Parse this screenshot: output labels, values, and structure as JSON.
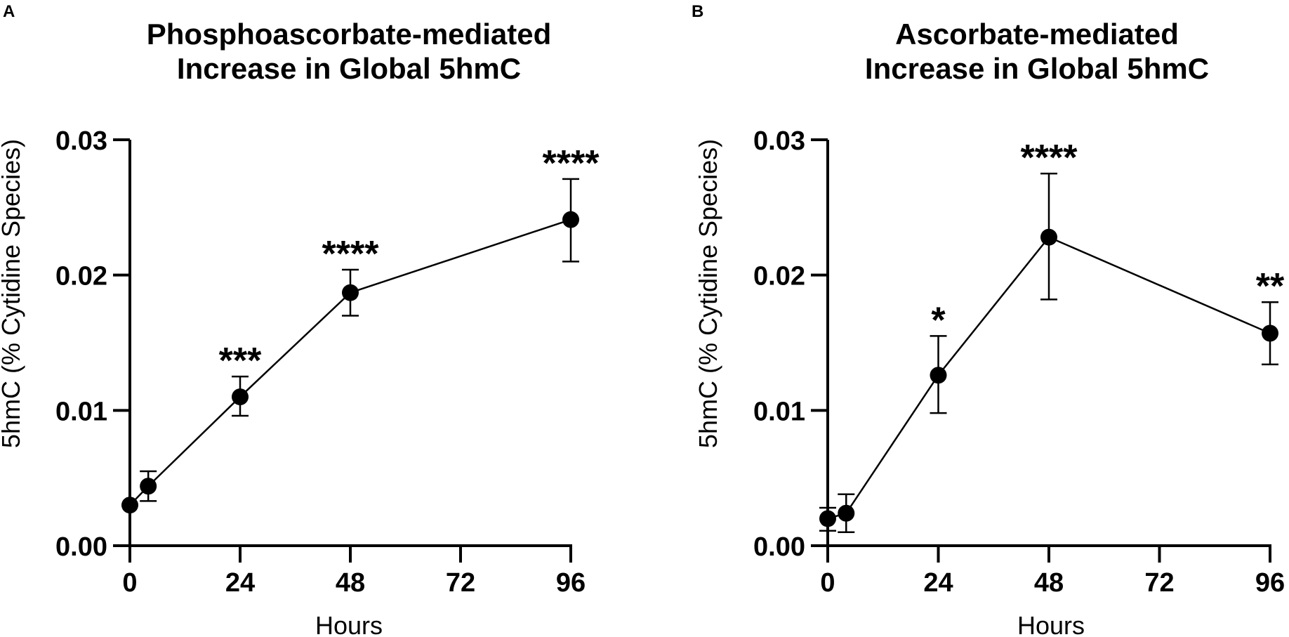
{
  "chart_data": [
    {
      "type": "line",
      "panel": "A",
      "title_lines": [
        "Phosphoascorbate-mediated",
        "Increase in Global 5hmC"
      ],
      "xlabel": "Hours",
      "ylabel": "5hmC (% Cytidine Species)",
      "xlim": [
        0,
        96
      ],
      "ylim": [
        0,
        0.03
      ],
      "xticks": [
        0,
        24,
        48,
        72,
        96
      ],
      "xtick_labels": [
        "0",
        "24",
        "48",
        "72",
        "96"
      ],
      "yticks": [
        0,
        0.01,
        0.02,
        0.03
      ],
      "ytick_labels": [
        "0.00",
        "0.01",
        "0.02",
        "0.03"
      ],
      "series": [
        {
          "name": "Phosphoascorbate",
          "x": [
            0,
            4,
            24,
            48,
            96
          ],
          "y": [
            0.003,
            0.0044,
            0.011,
            0.0187,
            0.0241
          ],
          "err_low": [
            0.003,
            0.0033,
            0.0096,
            0.017,
            0.021
          ],
          "err_high": [
            0.003,
            0.0055,
            0.0125,
            0.0204,
            0.0271
          ],
          "significance": [
            "",
            "",
            "***",
            "****",
            "****"
          ]
        }
      ]
    },
    {
      "type": "line",
      "panel": "B",
      "title_lines": [
        "Ascorbate-mediated",
        "Increase in Global 5hmC"
      ],
      "xlabel": "Hours",
      "ylabel": "5hmC (% Cytidine Species)",
      "xlim": [
        0,
        96
      ],
      "ylim": [
        0,
        0.03
      ],
      "xticks": [
        0,
        24,
        48,
        72,
        96
      ],
      "xtick_labels": [
        "0",
        "24",
        "48",
        "72",
        "96"
      ],
      "yticks": [
        0,
        0.01,
        0.02,
        0.03
      ],
      "ytick_labels": [
        "0.00",
        "0.01",
        "0.02",
        "0.03"
      ],
      "series": [
        {
          "name": "Ascorbate",
          "x": [
            0,
            4,
            24,
            48,
            96
          ],
          "y": [
            0.002,
            0.0024,
            0.0126,
            0.0228,
            0.0157
          ],
          "err_low": [
            0.0011,
            0.001,
            0.0098,
            0.0182,
            0.0134
          ],
          "err_high": [
            0.0028,
            0.0038,
            0.0155,
            0.0275,
            0.018
          ],
          "significance": [
            "",
            "",
            "*",
            "****",
            "**"
          ]
        }
      ]
    }
  ]
}
